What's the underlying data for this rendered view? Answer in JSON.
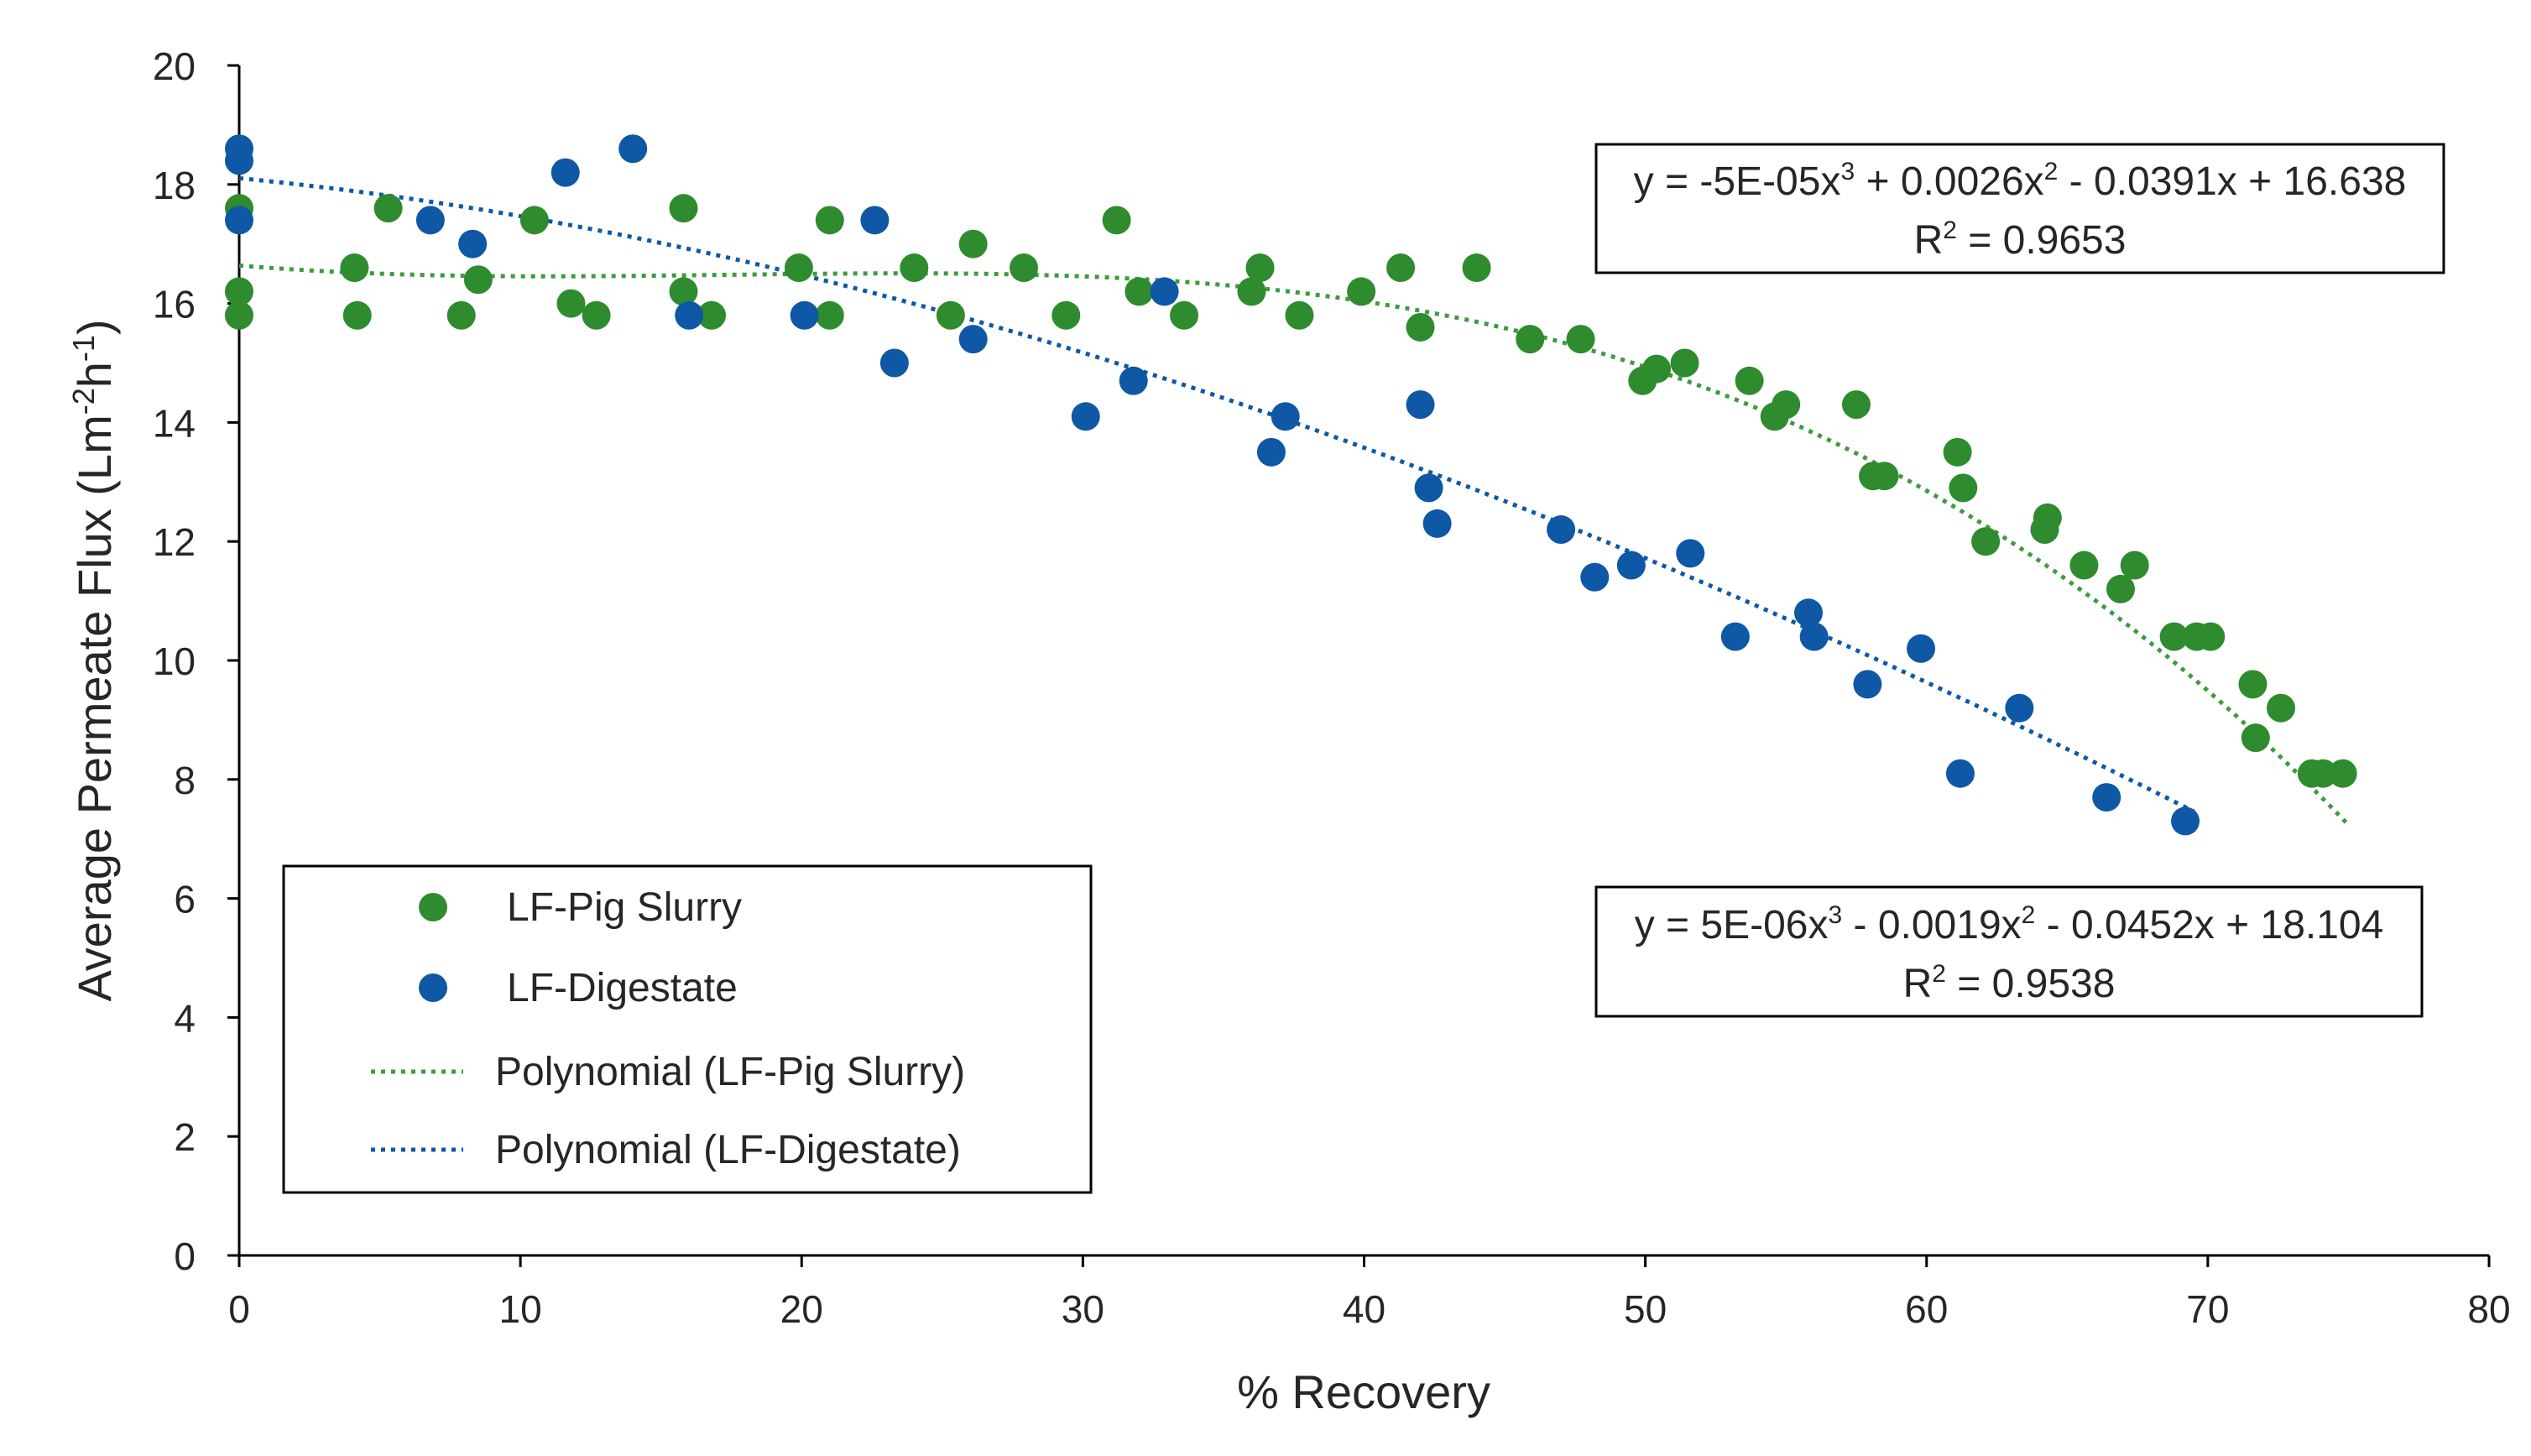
{
  "chart_data": {
    "type": "scatter",
    "title": "",
    "xlabel": "% Recovery",
    "ylabel_parts": {
      "base": "Average  Permeate Flux (Lm",
      "exp1": "-2",
      "mid": "h",
      "exp2": "-1",
      "end": ")"
    },
    "xlim": [
      0,
      80
    ],
    "ylim": [
      0,
      20
    ],
    "xticks": [
      0,
      10,
      20,
      30,
      40,
      50,
      60,
      70,
      80
    ],
    "yticks": [
      0,
      2,
      4,
      6,
      8,
      10,
      12,
      14,
      16,
      18,
      20
    ],
    "series": [
      {
        "name": "LF-Pig Slurry",
        "color": "#2e8b2e",
        "points": [
          [
            0,
            17.6
          ],
          [
            0,
            16.2
          ],
          [
            0,
            15.8
          ],
          [
            4.1,
            16.6
          ],
          [
            4.2,
            15.8
          ],
          [
            5.3,
            17.6
          ],
          [
            7.9,
            15.8
          ],
          [
            8.5,
            16.4
          ],
          [
            10.5,
            17.4
          ],
          [
            11.8,
            16.0
          ],
          [
            12.7,
            15.8
          ],
          [
            15.8,
            17.6
          ],
          [
            15.8,
            16.2
          ],
          [
            16.8,
            15.8
          ],
          [
            19.9,
            16.6
          ],
          [
            21,
            17.4
          ],
          [
            21,
            15.8
          ],
          [
            24,
            16.6
          ],
          [
            25.3,
            15.8
          ],
          [
            26.1,
            17.0
          ],
          [
            27.9,
            16.6
          ],
          [
            29.4,
            15.8
          ],
          [
            31.2,
            17.4
          ],
          [
            32,
            16.2
          ],
          [
            33.6,
            15.8
          ],
          [
            36,
            16.2
          ],
          [
            36.3,
            16.6
          ],
          [
            37.7,
            15.8
          ],
          [
            39.9,
            16.2
          ],
          [
            41.3,
            16.6
          ],
          [
            42,
            15.6
          ],
          [
            44,
            16.6
          ],
          [
            45.9,
            15.4
          ],
          [
            47.7,
            15.4
          ],
          [
            49.9,
            14.7
          ],
          [
            50.4,
            14.9
          ],
          [
            51.4,
            15.0
          ],
          [
            53.7,
            14.7
          ],
          [
            54.6,
            14.1
          ],
          [
            55,
            14.3
          ],
          [
            57.5,
            14.3
          ],
          [
            58.1,
            13.1
          ],
          [
            58.5,
            13.1
          ],
          [
            61.1,
            13.5
          ],
          [
            61.3,
            12.9
          ],
          [
            62.1,
            12.0
          ],
          [
            64.2,
            12.2
          ],
          [
            64.3,
            12.4
          ],
          [
            65.6,
            11.6
          ],
          [
            66.9,
            11.2
          ],
          [
            67.4,
            11.6
          ],
          [
            68.8,
            10.4
          ],
          [
            69.6,
            10.4
          ],
          [
            70.1,
            10.4
          ],
          [
            71.6,
            9.6
          ],
          [
            71.7,
            8.7
          ],
          [
            72.6,
            9.2
          ],
          [
            73.7,
            8.1
          ],
          [
            74.1,
            8.1
          ],
          [
            74.8,
            8.1
          ]
        ]
      },
      {
        "name": "LF-Digestate",
        "color": "#0e58a5",
        "points": [
          [
            0,
            18.6
          ],
          [
            0,
            18.4
          ],
          [
            0,
            17.4
          ],
          [
            6.8,
            17.4
          ],
          [
            8.3,
            17.0
          ],
          [
            11.6,
            18.2
          ],
          [
            14,
            18.6
          ],
          [
            16,
            15.8
          ],
          [
            20.1,
            15.8
          ],
          [
            22.6,
            17.4
          ],
          [
            23.3,
            15.0
          ],
          [
            26.1,
            15.4
          ],
          [
            30.1,
            14.1
          ],
          [
            31.8,
            14.7
          ],
          [
            32.9,
            16.2
          ],
          [
            36.7,
            13.5
          ],
          [
            37.2,
            14.1
          ],
          [
            42,
            14.3
          ],
          [
            42.3,
            12.9
          ],
          [
            42.6,
            12.3
          ],
          [
            47,
            12.2
          ],
          [
            48.2,
            11.4
          ],
          [
            49.5,
            11.6
          ],
          [
            51.6,
            11.8
          ],
          [
            53.2,
            10.4
          ],
          [
            55.8,
            10.8
          ],
          [
            56,
            10.4
          ],
          [
            57.9,
            9.6
          ],
          [
            59.8,
            10.2
          ],
          [
            61.2,
            8.1
          ],
          [
            63.3,
            9.2
          ],
          [
            66.4,
            7.7
          ],
          [
            69.2,
            7.3
          ]
        ]
      }
    ],
    "trendlines": [
      {
        "name": "Polynomial (LF-Pig Slurry)",
        "color": "#3e9b3e",
        "coefficients": [
          16.638,
          -0.0391,
          0.0026,
          -5e-05
        ],
        "x_range": [
          0,
          75
        ],
        "equation_lines": {
          "prefix": "y = -5E-05x",
          "e3": "3",
          "mid": " + 0.0026x",
          "e2": "2",
          "suffix": " - 0.0391x + 16.638"
        },
        "r2": {
          "prefix": "R",
          "exp": "2",
          "suffix": " = 0.9653"
        }
      },
      {
        "name": "Polynomial (LF-Digestate)",
        "color": "#0e58a5",
        "coefficients": [
          18.104,
          -0.0452,
          -0.0019,
          5e-06
        ],
        "x_range": [
          0,
          69.5
        ],
        "equation_lines": {
          "prefix": "y = 5E-06x",
          "e3": "3",
          "mid": " - 0.0019x",
          "e2": "2",
          "suffix": " - 0.0452x + 18.104"
        },
        "r2": {
          "prefix": "R",
          "exp": "2",
          "suffix": " = 0.9538"
        }
      }
    ],
    "legend": {
      "position": "bottom-left",
      "items": [
        "LF-Pig Slurry",
        "LF-Digestate",
        "Polynomial (LF-Pig Slurry)",
        "Polynomial (LF-Digestate)"
      ]
    }
  }
}
